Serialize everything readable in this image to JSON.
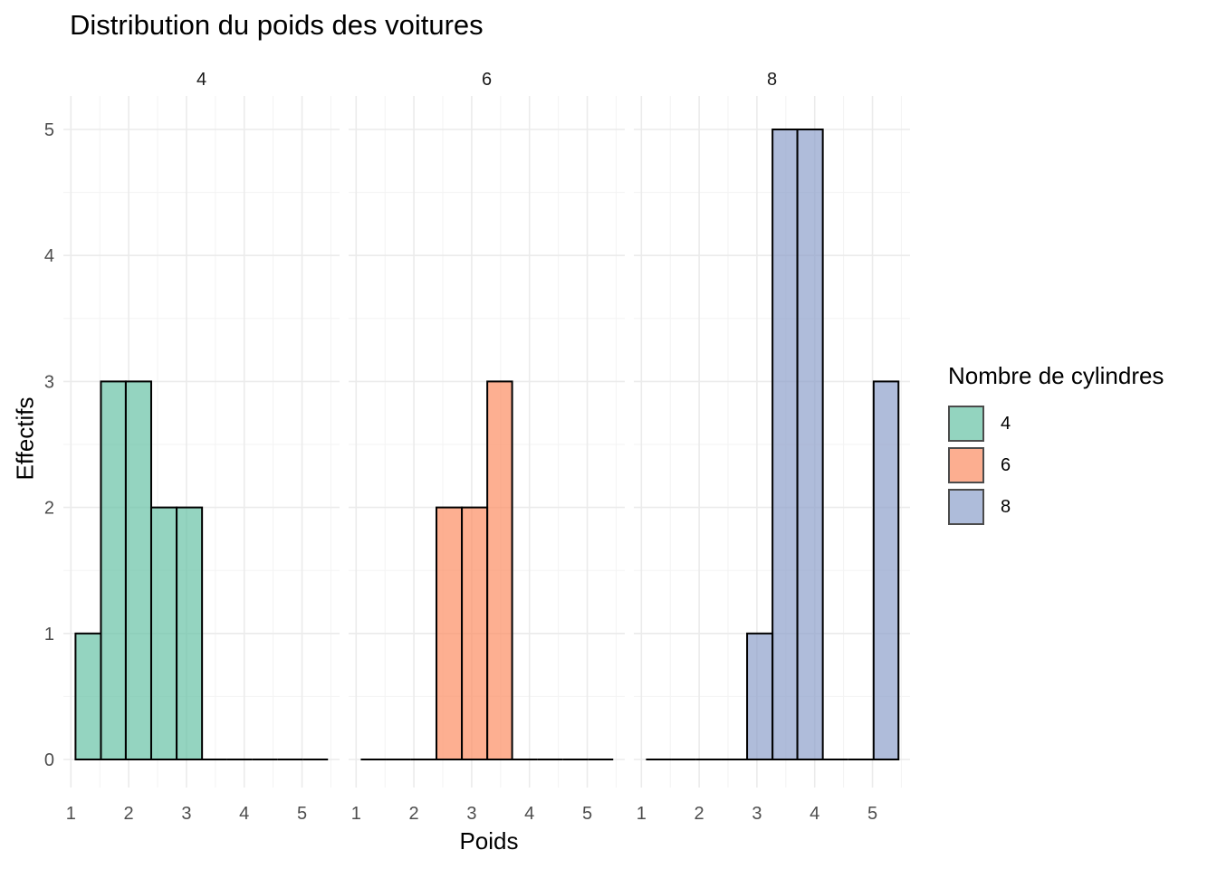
{
  "chart_data": {
    "type": "bar",
    "title": "Distribution du poids des voitures",
    "xlabel": "Poids",
    "ylabel": "Effectifs",
    "ylim": [
      0,
      5
    ],
    "xlim": [
      1,
      5.5
    ],
    "x_ticks": [
      1,
      2,
      3,
      4,
      5
    ],
    "y_ticks": [
      0,
      1,
      2,
      3,
      4,
      5
    ],
    "grid": true,
    "legend": {
      "title": "Nombre de cylindres",
      "position": "right",
      "items": [
        {
          "label": "4",
          "color": "#66c2a5"
        },
        {
          "label": "6",
          "color": "#fc8d62"
        },
        {
          "label": "8",
          "color": "#8da0cb"
        }
      ]
    },
    "bins": [
      1.08,
      1.52,
      1.95,
      2.39,
      2.83,
      3.27,
      3.7,
      4.14,
      4.58,
      5.02,
      5.45
    ],
    "facets": [
      {
        "label": "4",
        "color": "#66c2a5",
        "counts": [
          1,
          3,
          3,
          2,
          2,
          0,
          0,
          0,
          0,
          0
        ]
      },
      {
        "label": "6",
        "color": "#fc8d62",
        "counts": [
          0,
          0,
          0,
          2,
          2,
          3,
          0,
          0,
          0,
          0
        ]
      },
      {
        "label": "8",
        "color": "#8da0cb",
        "counts": [
          0,
          0,
          0,
          0,
          1,
          5,
          5,
          0,
          0,
          3
        ]
      }
    ]
  }
}
